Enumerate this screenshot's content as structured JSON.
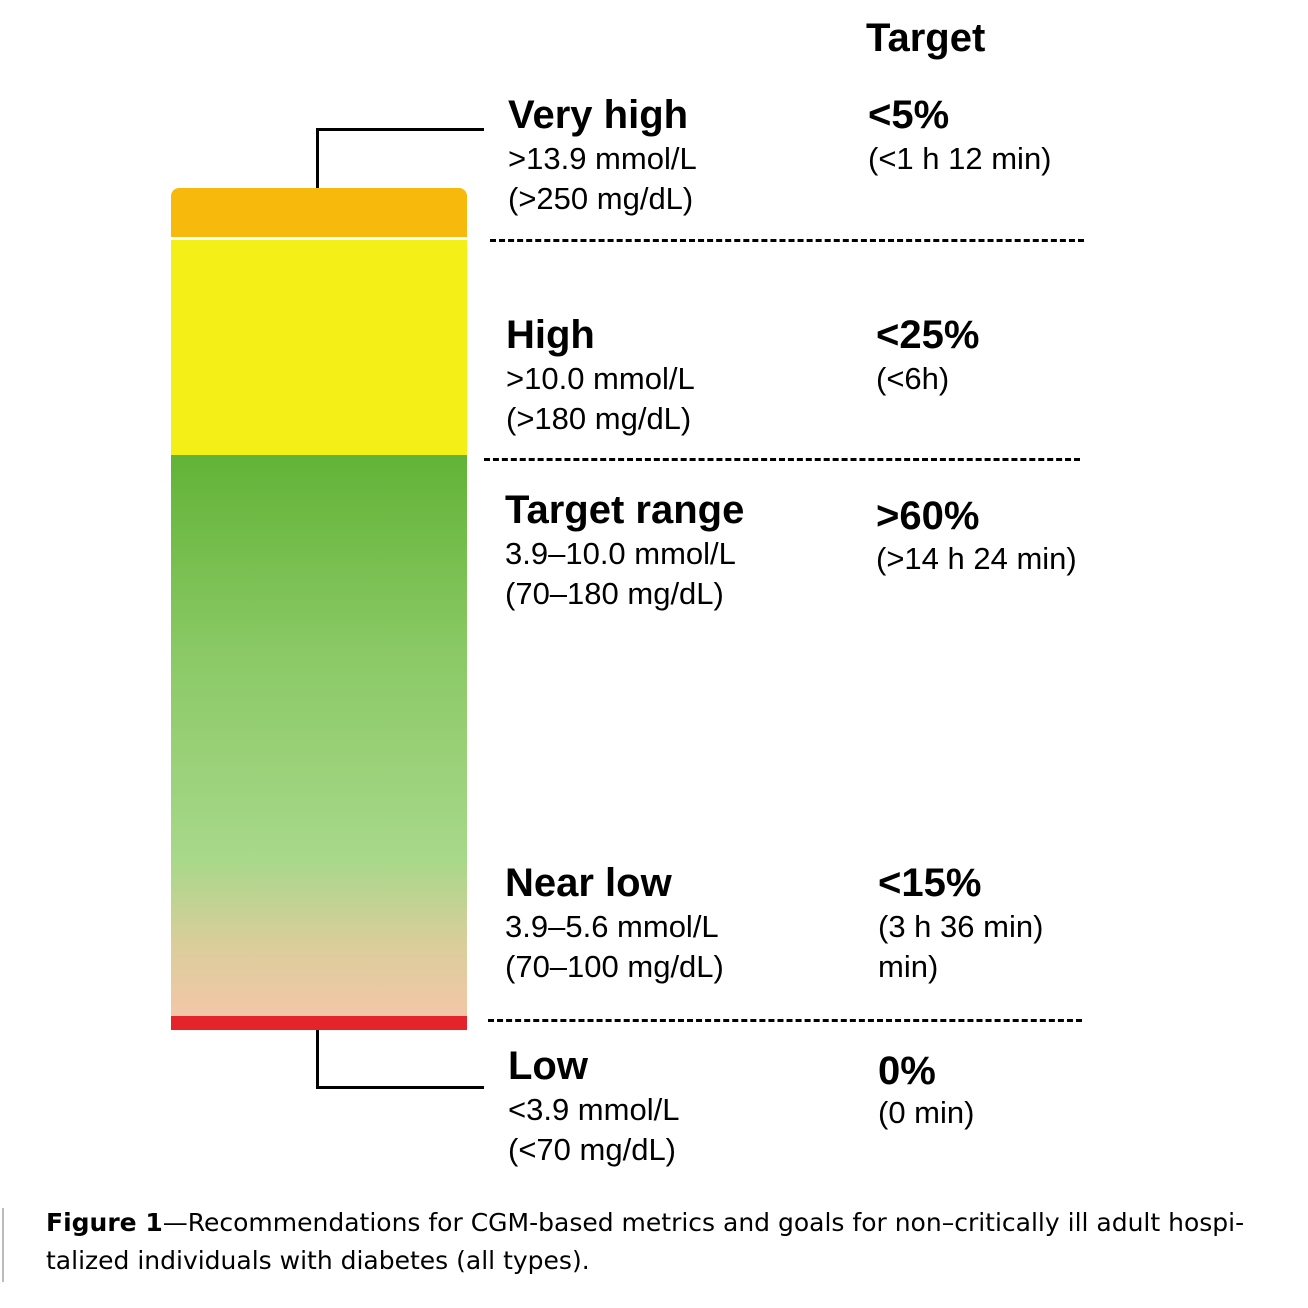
{
  "header": {
    "target": "Target"
  },
  "colors": {
    "very_high": "#f8b90d",
    "high": "#f3ef17",
    "target_top": "#62b337",
    "target_mid": "#a8d88a",
    "target_bottom": "#f3c7a8",
    "low": "#e5232a"
  },
  "ranges": [
    {
      "label": "Very high",
      "mmol": ">13.9 mmol/L",
      "mgdl": "(>250 mg/dL)",
      "percent": "<5%",
      "time": "(<1 h 12 min)"
    },
    {
      "label": "High",
      "mmol": ">10.0 mmol/L",
      "mgdl": "(>180 mg/dL)",
      "percent": "<25%",
      "time": "(<6h)"
    },
    {
      "label": "Target range",
      "mmol": "3.9–10.0 mmol/L",
      "mgdl": "(70–180 mg/dL)",
      "percent": ">60%",
      "time": "(>14 h 24 min)"
    },
    {
      "label": "Near low",
      "mmol": "3.9–5.6 mmol/L",
      "mgdl": "(70–100 mg/dL)",
      "percent": "<15%",
      "time": "(3 h 36 min)",
      "time_extra": "min)"
    },
    {
      "label": "Low",
      "mmol": "<3.9 mmol/L",
      "mgdl": "(<70 mg/dL)",
      "percent": "0%",
      "time": "(0 min)"
    }
  ],
  "caption": {
    "figure": "Figure 1",
    "text": "—Recommendations for CGM-based metrics and goals for non–critically ill adult hospi-talized individuals with diabetes (all types)."
  }
}
